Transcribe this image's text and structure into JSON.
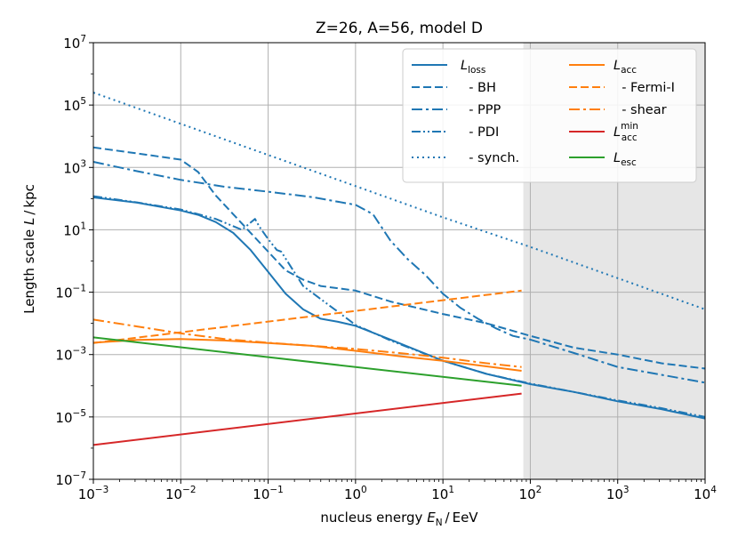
{
  "chart_data": {
    "type": "line",
    "title": "Z=26, A=56, model D",
    "xlabel": {
      "prefix": "nucleus energy ",
      "var": "E",
      "sub": "N",
      "suffix": " / EeV"
    },
    "ylabel": {
      "prefix": "Length scale ",
      "var": "L",
      "suffix": " / kpc"
    },
    "xscale": "log",
    "yscale": "log",
    "xlim_exp": [
      -3,
      4
    ],
    "ylim_exp": [
      -7,
      7
    ],
    "x_ticks": [
      {
        "base": "10",
        "exp": "−3",
        "value": -3
      },
      {
        "base": "10",
        "exp": "−2",
        "value": -2
      },
      {
        "base": "10",
        "exp": "−1",
        "value": -1
      },
      {
        "base": "10",
        "exp": "0",
        "value": 0
      },
      {
        "base": "10",
        "exp": "1",
        "value": 1
      },
      {
        "base": "10",
        "exp": "2",
        "value": 2
      },
      {
        "base": "10",
        "exp": "3",
        "value": 3
      },
      {
        "base": "10",
        "exp": "4",
        "value": 4
      }
    ],
    "y_ticks": [
      {
        "base": "10",
        "exp": "−7",
        "value": -7
      },
      {
        "base": "10",
        "exp": "−5",
        "value": -5
      },
      {
        "base": "10",
        "exp": "−3",
        "value": -3
      },
      {
        "base": "10",
        "exp": "−1",
        "value": -1
      },
      {
        "base": "10",
        "exp": "1",
        "value": 1
      },
      {
        "base": "10",
        "exp": "3",
        "value": 3
      },
      {
        "base": "10",
        "exp": "5",
        "value": 5
      },
      {
        "base": "10",
        "exp": "7",
        "value": 7
      }
    ],
    "grid": true,
    "shaded_region": {
      "x_from_exp": 1.92,
      "x_to_exp": 4,
      "color": "#e6e6e6"
    },
    "legend_position": "top-right",
    "series": [
      {
        "id": "loss",
        "name": "L",
        "sub": "loss",
        "color": "#1f77b4",
        "dash": "solid",
        "points": [
          [
            -3,
            2.04
          ],
          [
            -2.5,
            1.87
          ],
          [
            -2.0,
            1.62
          ],
          [
            -1.8,
            1.48
          ],
          [
            -1.6,
            1.25
          ],
          [
            -1.4,
            0.9
          ],
          [
            -1.2,
            0.35
          ],
          [
            -1.0,
            -0.35
          ],
          [
            -0.8,
            -1.05
          ],
          [
            -0.6,
            -1.55
          ],
          [
            -0.4,
            -1.85
          ],
          [
            -0.2,
            -1.95
          ],
          [
            0,
            -2.08
          ],
          [
            0.4,
            -2.52
          ],
          [
            1.0,
            -3.2
          ],
          [
            1.5,
            -3.62
          ],
          [
            2.0,
            -3.95
          ],
          [
            2.5,
            -4.2
          ],
          [
            3.0,
            -4.5
          ],
          [
            3.5,
            -4.75
          ],
          [
            4.0,
            -5.05
          ]
        ]
      },
      {
        "id": "bh",
        "name": "  - BH",
        "color": "#1f77b4",
        "dash": "9,4",
        "points": [
          [
            -3,
            3.64
          ],
          [
            -2.5,
            3.45
          ],
          [
            -2.0,
            3.25
          ],
          [
            -1.8,
            2.85
          ],
          [
            -1.6,
            2.1
          ],
          [
            -1.4,
            1.5
          ],
          [
            -1.2,
            0.9
          ],
          [
            -1.0,
            0.3
          ],
          [
            -0.8,
            -0.3
          ],
          [
            -0.6,
            -0.6
          ],
          [
            -0.4,
            -0.8
          ],
          [
            0,
            -0.95
          ],
          [
            0.4,
            -1.3
          ],
          [
            1.0,
            -1.7
          ],
          [
            1.5,
            -2.0
          ],
          [
            2.0,
            -2.4
          ],
          [
            2.5,
            -2.78
          ],
          [
            3.0,
            -3.0
          ],
          [
            3.5,
            -3.28
          ],
          [
            4.0,
            -3.45
          ]
        ]
      },
      {
        "id": "ppp",
        "name": "  - PPP",
        "color": "#1f77b4",
        "dash": "12,4,3,4",
        "points": [
          [
            -3,
            3.18
          ],
          [
            -2.5,
            2.88
          ],
          [
            -2.0,
            2.6
          ],
          [
            -1.5,
            2.38
          ],
          [
            -1.0,
            2.22
          ],
          [
            -0.5,
            2.05
          ],
          [
            0,
            1.8
          ],
          [
            0.2,
            1.5
          ],
          [
            0.4,
            0.65
          ],
          [
            0.6,
            0.05
          ],
          [
            0.8,
            -0.45
          ],
          [
            1.0,
            -1.05
          ],
          [
            1.2,
            -1.5
          ],
          [
            1.4,
            -1.85
          ],
          [
            1.6,
            -2.15
          ],
          [
            1.8,
            -2.4
          ],
          [
            2.0,
            -2.52
          ],
          [
            2.5,
            -2.95
          ],
          [
            3.0,
            -3.4
          ],
          [
            3.5,
            -3.65
          ],
          [
            4.0,
            -3.9
          ]
        ]
      },
      {
        "id": "pdi",
        "name": "  - PDI",
        "color": "#1f77b4",
        "dash": "10,3,2,3,2,3",
        "points": [
          [
            -3,
            2.08
          ],
          [
            -2.5,
            1.88
          ],
          [
            -2.0,
            1.65
          ],
          [
            -1.6,
            1.35
          ],
          [
            -1.3,
            1.0
          ],
          [
            -1.15,
            1.35
          ],
          [
            -1.1,
            1.1
          ],
          [
            -1.0,
            0.7
          ],
          [
            -0.9,
            0.35
          ],
          [
            -0.85,
            0.3
          ],
          [
            -0.6,
            -0.8
          ],
          [
            0,
            -2.05
          ],
          [
            0.4,
            -2.55
          ],
          [
            1.0,
            -3.2
          ],
          [
            1.5,
            -3.62
          ],
          [
            2.0,
            -3.93
          ],
          [
            2.5,
            -4.2
          ],
          [
            3.0,
            -4.47
          ],
          [
            3.5,
            -4.72
          ],
          [
            4.0,
            -5.0
          ]
        ]
      },
      {
        "id": "synch",
        "name": "  - synch.",
        "color": "#1f77b4",
        "dash": "2,4",
        "points": [
          [
            -3,
            5.4
          ],
          [
            -2.0,
            4.4
          ],
          [
            -1.0,
            3.4
          ],
          [
            0,
            2.4
          ],
          [
            1.0,
            1.4
          ],
          [
            2.0,
            0.45
          ],
          [
            3.0,
            -0.55
          ],
          [
            4.0,
            -1.55
          ]
        ]
      },
      {
        "id": "acc",
        "name": "L",
        "sub": "acc",
        "color": "#ff7f0e",
        "dash": "solid",
        "points": [
          [
            -3,
            -2.62
          ],
          [
            -2.5,
            -2.53
          ],
          [
            -2.0,
            -2.5
          ],
          [
            -1.5,
            -2.55
          ],
          [
            -1.0,
            -2.63
          ],
          [
            -0.5,
            -2.72
          ],
          [
            0,
            -2.88
          ],
          [
            0.5,
            -3.05
          ],
          [
            1.0,
            -3.2
          ],
          [
            1.5,
            -3.38
          ],
          [
            1.9,
            -3.52
          ]
        ]
      },
      {
        "id": "fermi",
        "name": "  - Fermi-I",
        "color": "#ff7f0e",
        "dash": "9,4",
        "points": [
          [
            -3,
            -2.63
          ],
          [
            1.9,
            -0.95
          ]
        ]
      },
      {
        "id": "shear",
        "name": "  - shear",
        "color": "#ff7f0e",
        "dash": "12,4,3,4",
        "points": [
          [
            -3,
            -1.88
          ],
          [
            -2.5,
            -2.1
          ],
          [
            -2.0,
            -2.32
          ],
          [
            -1.5,
            -2.5
          ],
          [
            -1.0,
            -2.62
          ],
          [
            -0.5,
            -2.72
          ],
          [
            0,
            -2.82
          ],
          [
            0.5,
            -2.95
          ],
          [
            1.0,
            -3.1
          ],
          [
            1.5,
            -3.28
          ],
          [
            1.9,
            -3.4
          ]
        ]
      },
      {
        "id": "accmin",
        "name": "L",
        "sub": "acc",
        "sup": "min",
        "color": "#d62728",
        "dash": "solid",
        "points": [
          [
            -3,
            -5.9
          ],
          [
            1.9,
            -4.25
          ]
        ]
      },
      {
        "id": "esc",
        "name": "L",
        "sub": "esc",
        "color": "#2ca02c",
        "dash": "solid",
        "points": [
          [
            -3,
            -2.45
          ],
          [
            1.9,
            -4.0
          ]
        ]
      }
    ]
  }
}
